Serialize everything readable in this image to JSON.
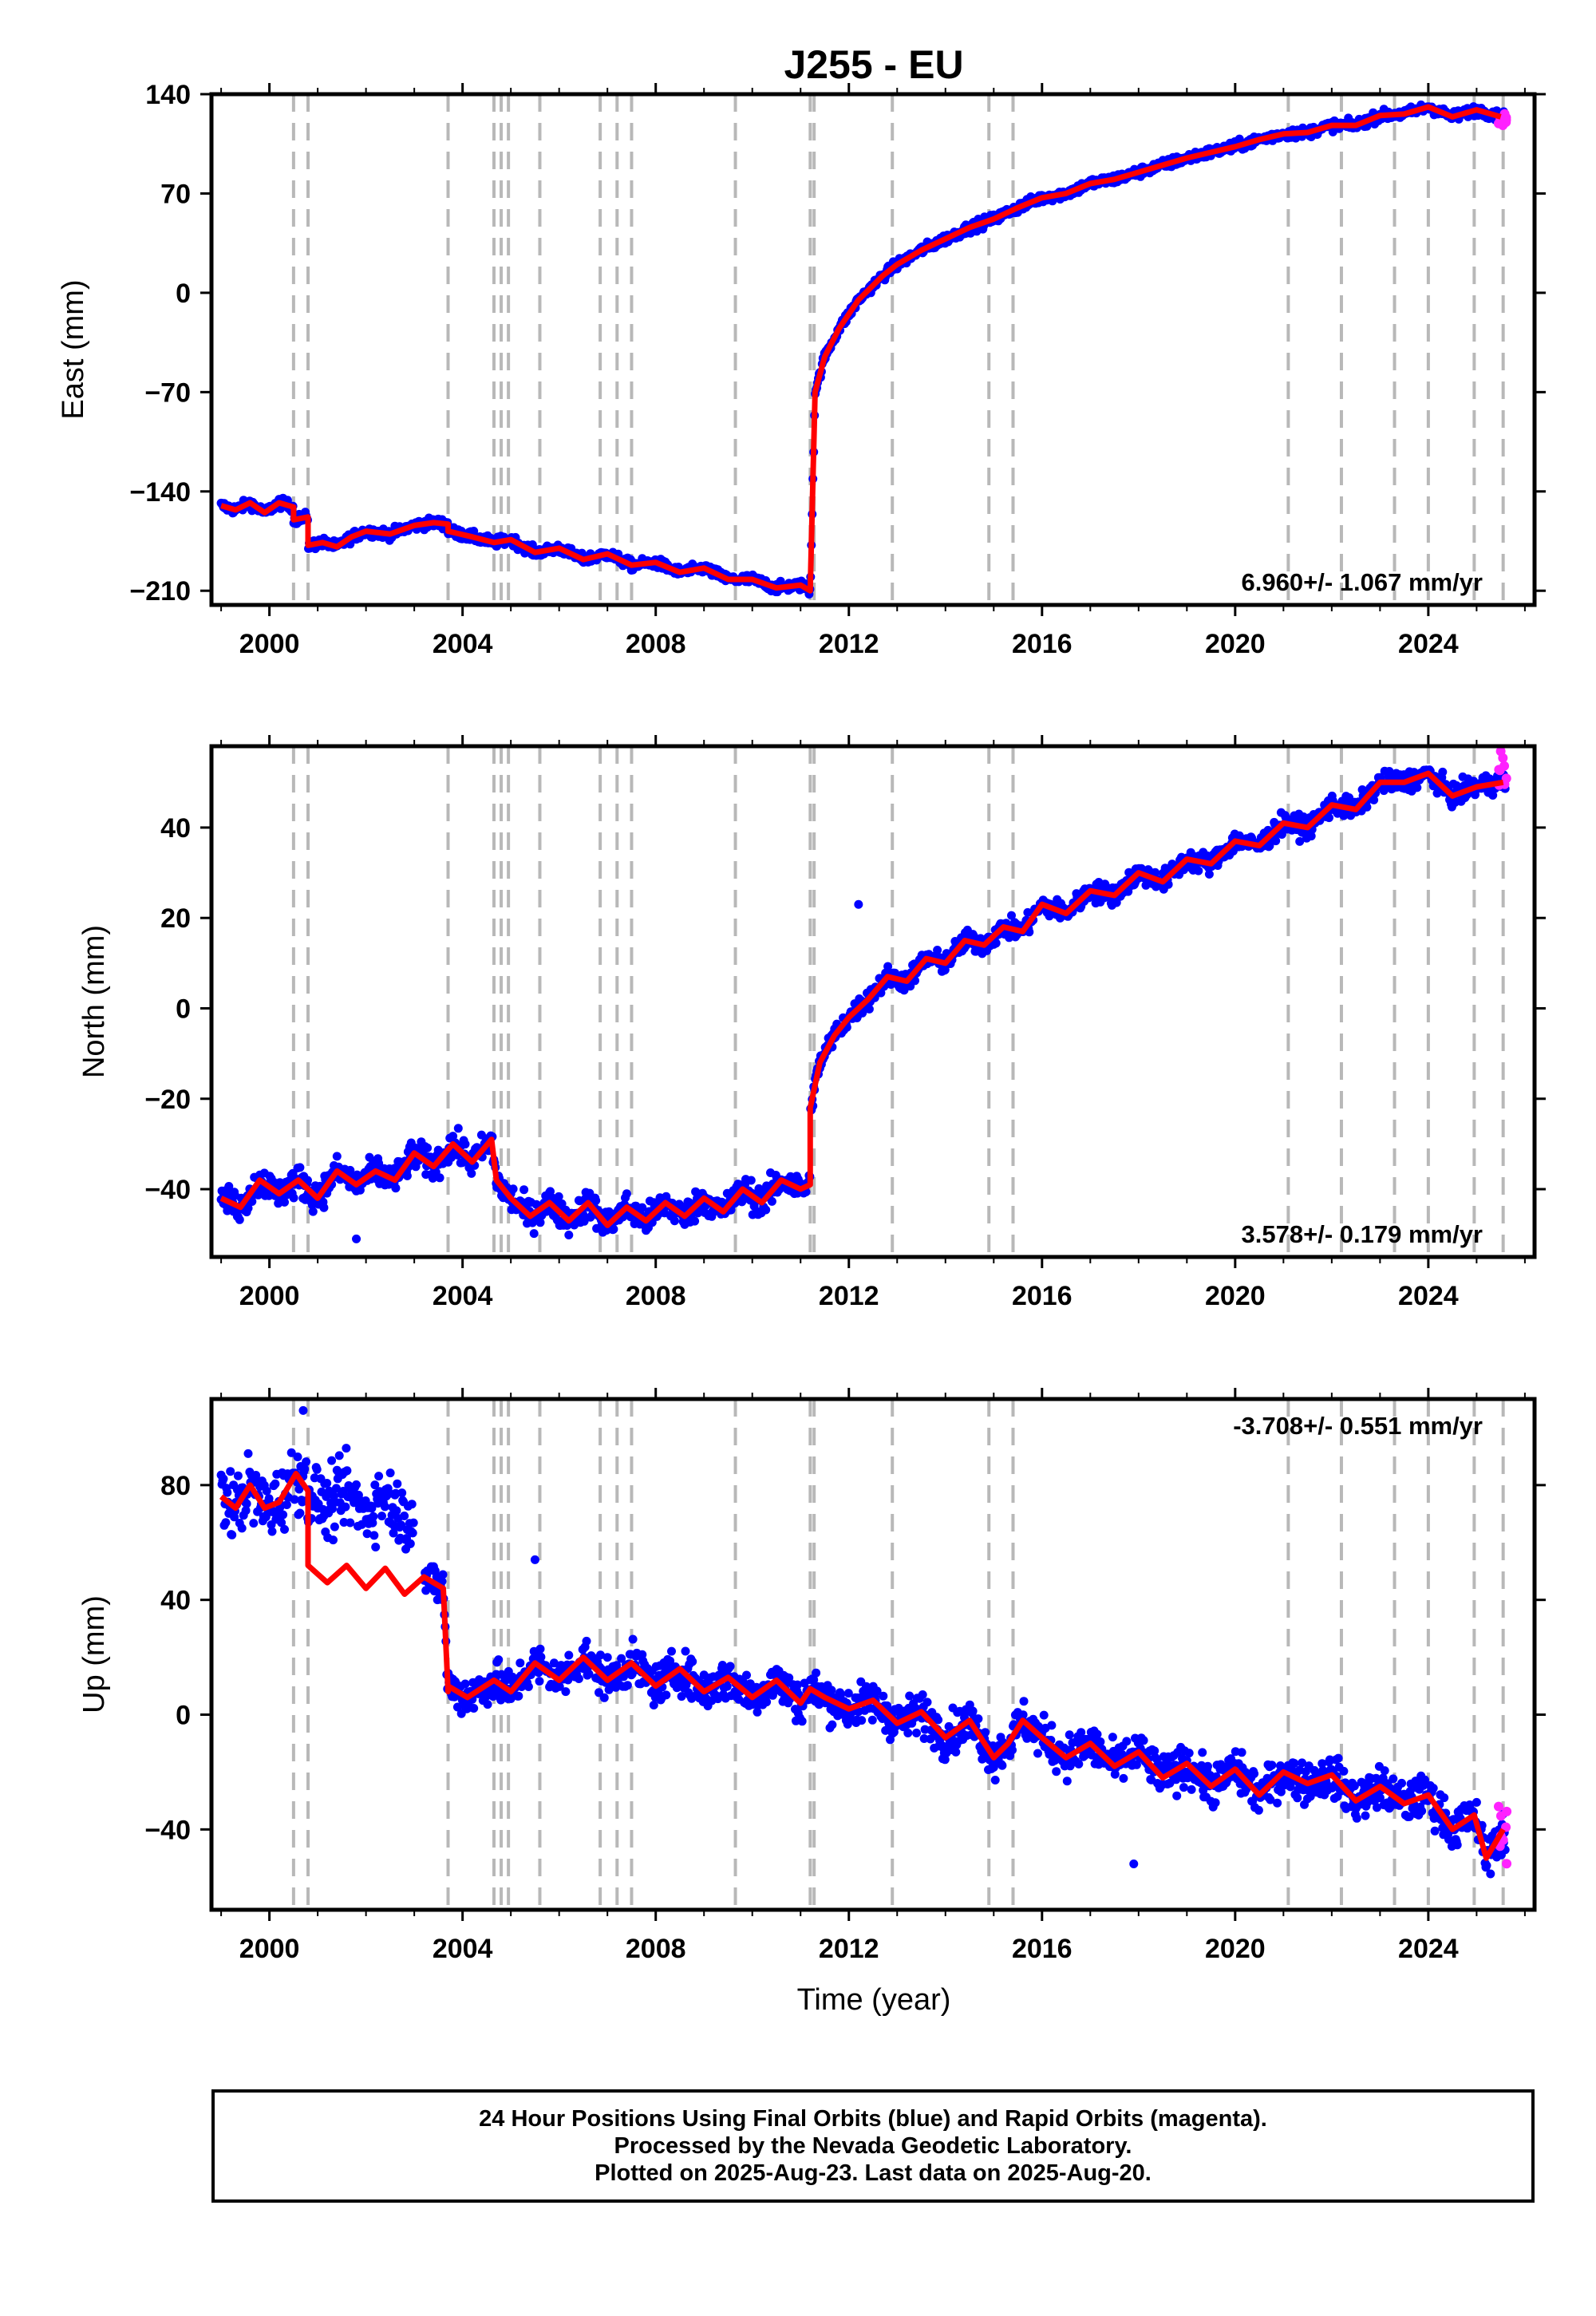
{
  "title": "J255 - EU",
  "xlabel": "Time (year)",
  "colors": {
    "final_orbits": "#0000ff",
    "rapid_orbits": "#ff22ff",
    "model": "#ff0000",
    "event_lines": "#b8b8b8"
  },
  "footer": {
    "line1": "24 Hour Positions Using Final Orbits (blue) and Rapid Orbits (magenta).",
    "line2": "Processed by the Nevada Geodetic Laboratory.",
    "line3": "Plotted on 2025-Aug-23. Last data on 2025-Aug-20."
  },
  "chart_data": [
    {
      "type": "scatter",
      "panel": "east",
      "ylabel": "East (mm)",
      "xlim": [
        1998.8,
        2026.2
      ],
      "ylim": [
        -220,
        140
      ],
      "xticks": [
        2000,
        2004,
        2008,
        2012,
        2016,
        2020,
        2024
      ],
      "yticks": [
        -210,
        -140,
        -70,
        0,
        70,
        140
      ],
      "yticklabels": [
        "−210",
        "−140",
        "−70",
        "0",
        "70",
        "140"
      ],
      "rate_label": "6.960+/- 1.067 mm/yr",
      "rate_position": "bottom-right",
      "event_lines": [
        2000.5,
        2000.8,
        2003.7,
        2004.65,
        2004.8,
        2004.95,
        2005.6,
        2006.85,
        2007.2,
        2007.5,
        2009.65,
        2011.2,
        2011.28,
        2012.9,
        2014.9,
        2015.4,
        2021.1,
        2022.2,
        2023.3,
        2024.0,
        2024.95,
        2025.55
      ],
      "model_x": [
        1999.0,
        1999.3,
        1999.6,
        1999.9,
        2000.2,
        2000.5,
        2000.5,
        2000.8,
        2000.8,
        2001.1,
        2001.4,
        2001.7,
        2002.0,
        2002.5,
        2003.0,
        2003.4,
        2003.7,
        2003.7,
        2004.2,
        2004.65,
        2005.0,
        2005.5,
        2006.0,
        2006.5,
        2007.0,
        2007.5,
        2008.0,
        2008.5,
        2009.0,
        2009.5,
        2010.0,
        2010.5,
        2011.0,
        2011.2,
        2011.2,
        2011.3,
        2011.5,
        2011.8,
        2012.2,
        2012.7,
        2013.0,
        2013.5,
        2014.0,
        2014.5,
        2015.0,
        2015.5,
        2016.0,
        2016.5,
        2017.0,
        2017.5,
        2018.0,
        2018.5,
        2019.0,
        2019.5,
        2020.0,
        2020.5,
        2021.0,
        2021.5,
        2022.0,
        2022.5,
        2023.0,
        2023.5,
        2024.0,
        2024.5,
        2025.0,
        2025.5
      ],
      "model_y": [
        -150,
        -153,
        -148,
        -155,
        -148,
        -151,
        -160,
        -158,
        -178,
        -176,
        -179,
        -172,
        -168,
        -170,
        -164,
        -162,
        -163,
        -168,
        -172,
        -176,
        -174,
        -183,
        -180,
        -188,
        -184,
        -192,
        -190,
        -197,
        -194,
        -202,
        -202,
        -208,
        -206,
        -210,
        -210,
        -70,
        -45,
        -25,
        -5,
        12,
        20,
        30,
        38,
        46,
        52,
        60,
        67,
        70,
        77,
        80,
        85,
        90,
        95,
        99,
        103,
        108,
        112,
        113,
        118,
        118,
        125,
        126,
        131,
        124,
        129,
        124
      ],
      "data_x_range": [
        1999.0,
        2025.6
      ],
      "rapid_x_range": [
        2025.45,
        2025.63
      ],
      "rapid_y": [
        118,
        128
      ]
    },
    {
      "type": "scatter",
      "panel": "north",
      "ylabel": "North (mm)",
      "xlim": [
        1998.8,
        2026.2
      ],
      "ylim": [
        -55,
        58
      ],
      "xticks": [
        2000,
        2004,
        2008,
        2012,
        2016,
        2020,
        2024
      ],
      "yticks": [
        -40,
        -20,
        0,
        20,
        40
      ],
      "yticklabels": [
        "−40",
        "−20",
        "0",
        "20",
        "40"
      ],
      "rate_label": "3.578+/- 0.179 mm/yr",
      "rate_position": "bottom-right",
      "event_lines": [
        2000.5,
        2000.8,
        2003.7,
        2004.65,
        2004.8,
        2004.95,
        2005.6,
        2006.85,
        2007.2,
        2007.5,
        2009.65,
        2011.2,
        2011.28,
        2012.9,
        2014.9,
        2015.4,
        2021.1,
        2022.2,
        2023.3,
        2024.0,
        2024.95,
        2025.55
      ],
      "model_x": [
        1999.0,
        1999.4,
        1999.8,
        2000.2,
        2000.6,
        2001.0,
        2001.4,
        2001.8,
        2002.2,
        2002.6,
        2003.0,
        2003.4,
        2003.8,
        2004.2,
        2004.6,
        2004.7,
        2005.0,
        2005.4,
        2005.8,
        2006.2,
        2006.6,
        2007.0,
        2007.4,
        2007.8,
        2008.2,
        2008.6,
        2009.0,
        2009.4,
        2009.8,
        2010.2,
        2010.6,
        2011.0,
        2011.2,
        2011.2,
        2011.4,
        2011.7,
        2012.0,
        2012.4,
        2012.8,
        2013.2,
        2013.6,
        2014.0,
        2014.4,
        2014.8,
        2015.2,
        2015.6,
        2016.0,
        2016.5,
        2017.0,
        2017.5,
        2018.0,
        2018.5,
        2019.0,
        2019.5,
        2020.0,
        2020.5,
        2021.0,
        2021.5,
        2022.0,
        2022.5,
        2023.0,
        2023.5,
        2024.0,
        2024.5,
        2025.0,
        2025.55
      ],
      "model_y": [
        -42,
        -44,
        -38,
        -41,
        -38,
        -42,
        -36,
        -39,
        -36,
        -38,
        -32,
        -35,
        -30,
        -34,
        -29,
        -38,
        -42,
        -46,
        -43,
        -47,
        -43,
        -48,
        -44,
        -47,
        -43,
        -46,
        -42,
        -45,
        -40,
        -43,
        -38,
        -40,
        -39,
        -22,
        -12,
        -6,
        -2,
        2,
        7,
        6,
        11,
        10,
        15,
        14,
        18,
        17,
        23,
        21,
        26,
        25,
        30,
        28,
        33,
        32,
        37,
        36,
        41,
        40,
        45,
        44,
        50,
        50,
        52,
        47,
        49,
        50
      ],
      "outliers": [
        [
          2012.2,
          23
        ],
        [
          2001.8,
          -51
        ]
      ],
      "data_x_range": [
        1999.0,
        2025.6
      ],
      "rapid_x_range": [
        2025.45,
        2025.63
      ],
      "rapid_y": [
        48,
        57
      ]
    },
    {
      "type": "scatter",
      "panel": "up",
      "ylabel": "Up (mm)",
      "xlim": [
        1998.8,
        2026.2
      ],
      "ylim": [
        -68,
        110
      ],
      "xticks": [
        2000,
        2004,
        2008,
        2012,
        2016,
        2020,
        2024
      ],
      "yticks": [
        -40,
        0,
        40,
        80
      ],
      "yticklabels": [
        "−40",
        "0",
        "40",
        "80"
      ],
      "rate_label": "-3.708+/- 0.551 mm/yr",
      "rate_position": "top-right",
      "event_lines": [
        2000.5,
        2000.8,
        2003.7,
        2004.65,
        2004.8,
        2004.95,
        2005.6,
        2006.85,
        2007.2,
        2007.5,
        2009.65,
        2011.2,
        2011.28,
        2012.9,
        2014.9,
        2015.4,
        2021.1,
        2022.2,
        2023.3,
        2024.0,
        2024.95,
        2025.55
      ],
      "model_x": [
        1999.0,
        1999.3,
        1999.6,
        1999.9,
        2000.2,
        2000.55,
        2000.8,
        2000.8,
        2001.2,
        2001.6,
        2002.0,
        2002.4,
        2002.8,
        2003.2,
        2003.6,
        2003.7,
        2003.7,
        2004.1,
        2004.65,
        2005.0,
        2005.5,
        2006.0,
        2006.5,
        2007.0,
        2007.5,
        2008.0,
        2008.5,
        2009.0,
        2009.5,
        2010.0,
        2010.5,
        2011.0,
        2011.2,
        2011.5,
        2012.0,
        2012.5,
        2013.0,
        2013.5,
        2014.0,
        2014.5,
        2015.0,
        2015.3,
        2015.6,
        2016.0,
        2016.5,
        2017.0,
        2017.5,
        2018.0,
        2018.5,
        2019.0,
        2019.5,
        2020.0,
        2020.5,
        2021.0,
        2021.5,
        2022.0,
        2022.5,
        2023.0,
        2023.5,
        2024.0,
        2024.5,
        2024.95,
        2025.2,
        2025.55
      ],
      "model_y": [
        76,
        72,
        80,
        72,
        74,
        84,
        78,
        52,
        46,
        52,
        44,
        51,
        42,
        48,
        44,
        8,
        10,
        6,
        12,
        8,
        18,
        12,
        20,
        12,
        18,
        10,
        16,
        8,
        13,
        6,
        12,
        4,
        9,
        6,
        2,
        5,
        -3,
        1,
        -8,
        -2,
        -15,
        -10,
        -2,
        -8,
        -15,
        -10,
        -18,
        -13,
        -22,
        -17,
        -25,
        -19,
        -28,
        -20,
        -24,
        -21,
        -30,
        -25,
        -31,
        -28,
        -40,
        -35,
        -50,
        -40
      ],
      "outliers": [
        [
          2005.5,
          54
        ],
        [
          2017.9,
          -52
        ],
        [
          2000.7,
          106
        ]
      ],
      "data_x_range": [
        1999.0,
        2025.6
      ],
      "rapid_x_range": [
        2025.45,
        2025.63
      ],
      "rapid_y": [
        -52,
        -30
      ]
    }
  ]
}
